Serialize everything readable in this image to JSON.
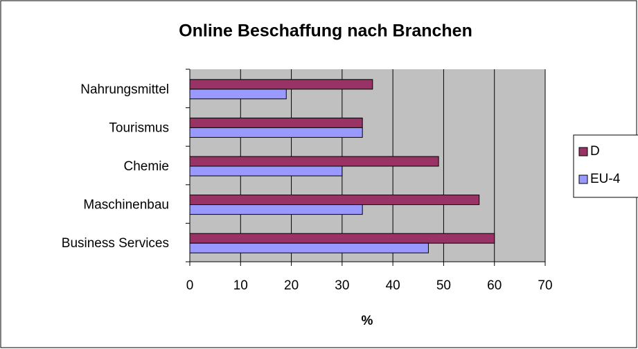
{
  "chart_data": {
    "type": "barh",
    "title": "Online Beschaffung nach Branchen",
    "x_label": "%",
    "categories": [
      "Nahrungsmittel",
      "Tourismus",
      "Chemie",
      "Maschinenbau",
      "Business Services"
    ],
    "series": [
      {
        "name": "D",
        "color": "#993366",
        "values": [
          36,
          34,
          49,
          57,
          60
        ]
      },
      {
        "name": "EU-4",
        "color": "#9999ff",
        "values": [
          19,
          34,
          30,
          34,
          47
        ]
      }
    ],
    "xlim": [
      0,
      70
    ],
    "xticks": [
      0,
      10,
      20,
      30,
      40,
      50,
      60,
      70
    ],
    "grid": true,
    "legend": "right",
    "plot_background": "#c0c0c0"
  }
}
